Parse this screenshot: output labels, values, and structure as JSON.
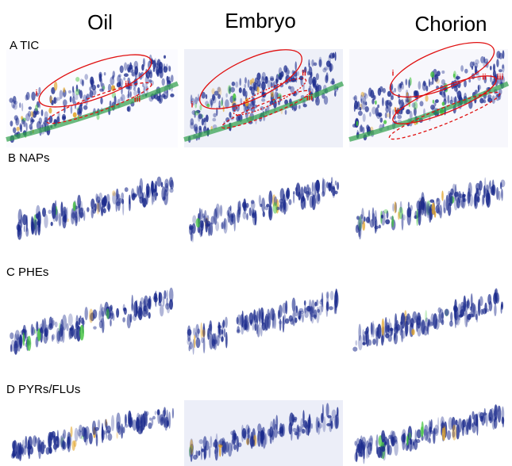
{
  "columns": [
    "Oil",
    "Embryo",
    "Chorion"
  ],
  "rows": [
    {
      "label": "A TIC",
      "annotations": [
        [
          "i",
          "ii",
          "iii"
        ],
        [
          "i",
          "ii",
          "iii"
        ],
        [
          "i",
          "ii",
          "ii",
          "iii"
        ]
      ]
    },
    {
      "label": "B NAPs"
    },
    {
      "label": "C PHEs"
    },
    {
      "label": "D PYRs/FLUs"
    }
  ]
}
